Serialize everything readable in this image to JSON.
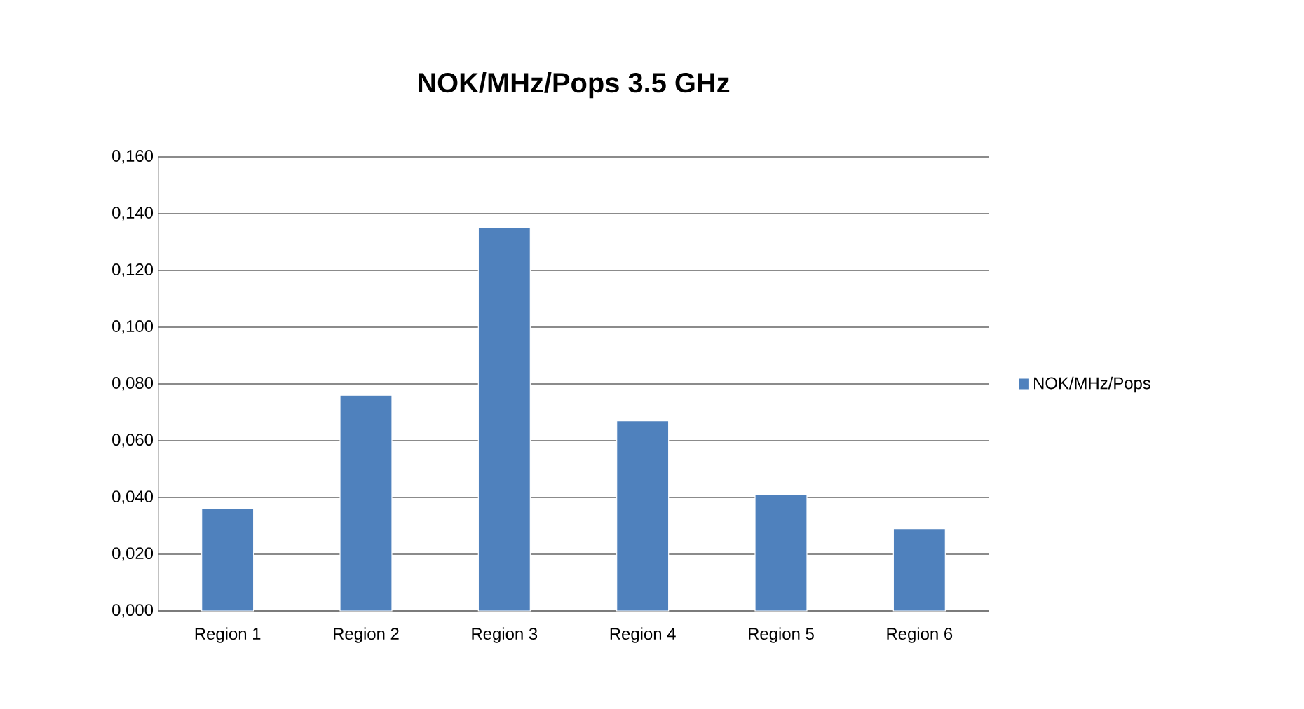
{
  "chart_data": {
    "type": "bar",
    "title": "NOK/MHz/Pops 3.5 GHz",
    "categories": [
      "Region 1",
      "Region 2",
      "Region 3",
      "Region 4",
      "Region 5",
      "Region 6"
    ],
    "series": [
      {
        "name": "NOK/MHz/Pops",
        "color": "#4f81bd",
        "values": [
          0.036,
          0.076,
          0.135,
          0.067,
          0.041,
          0.029
        ]
      }
    ],
    "ylim": [
      0,
      0.16
    ],
    "yticks": [
      {
        "value": 0,
        "label": "0,000"
      },
      {
        "value": 0.02,
        "label": "0,020"
      },
      {
        "value": 0.04,
        "label": "0,040"
      },
      {
        "value": 0.06,
        "label": "0,060"
      },
      {
        "value": 0.08,
        "label": "0,080"
      },
      {
        "value": 0.1,
        "label": "0,100"
      },
      {
        "value": 0.12,
        "label": "0,120"
      },
      {
        "value": 0.14,
        "label": "0,140"
      },
      {
        "value": 0.16,
        "label": "0,160"
      }
    ],
    "grid": "y",
    "legend": "right"
  }
}
